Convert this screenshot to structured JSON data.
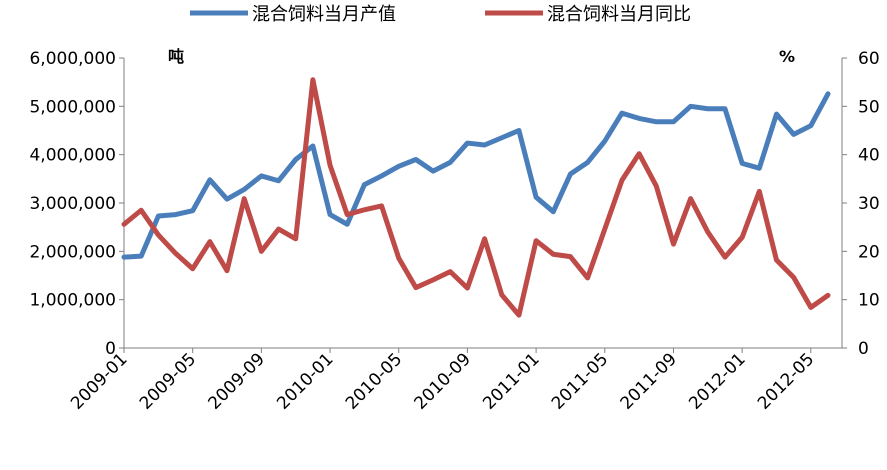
{
  "chart_data": {
    "type": "line",
    "title": "",
    "left_axis": {
      "unit": "吨",
      "ylim": [
        0,
        6000000
      ],
      "ticks": [
        "0",
        "1,000,000",
        "2,000,000",
        "3,000,000",
        "4,000,000",
        "5,000,000",
        "6,000,000"
      ]
    },
    "right_axis": {
      "unit": "%",
      "ylim": [
        0,
        60
      ],
      "ticks": [
        "0",
        "10",
        "20",
        "30",
        "40",
        "50",
        "60"
      ]
    },
    "x_tick_labels": [
      "2009-01",
      "2009-05",
      "2009-09",
      "2010-01",
      "2010-05",
      "2010-09",
      "2011-01",
      "2011-05",
      "2011-09",
      "2012-01",
      "2012-05"
    ],
    "legend_position": "top",
    "grid": false,
    "x": [
      "2009-01",
      "2009-02",
      "2009-03",
      "2009-04",
      "2009-05",
      "2009-06",
      "2009-07",
      "2009-08",
      "2009-09",
      "2009-10",
      "2009-11",
      "2009-12",
      "2010-01",
      "2010-02",
      "2010-03",
      "2010-04",
      "2010-05",
      "2010-06",
      "2010-07",
      "2010-08",
      "2010-09",
      "2010-10",
      "2010-11",
      "2010-12",
      "2011-01",
      "2011-02",
      "2011-03",
      "2011-04",
      "2011-05",
      "2011-06",
      "2011-07",
      "2011-08",
      "2011-09",
      "2011-10",
      "2011-11",
      "2011-12",
      "2012-01",
      "2012-02",
      "2012-03",
      "2012-04",
      "2012-05",
      "2012-06"
    ],
    "series": [
      {
        "name": "混合饲料当月产值",
        "axis": "left",
        "color": "#4a7ebb",
        "values": [
          1880000,
          1900000,
          2730000,
          2760000,
          2840000,
          3480000,
          3080000,
          3280000,
          3560000,
          3460000,
          3900000,
          4180000,
          2760000,
          2560000,
          3380000,
          3560000,
          3760000,
          3900000,
          3660000,
          3840000,
          4240000,
          4200000,
          4350000,
          4500000,
          3120000,
          2820000,
          3600000,
          3840000,
          4280000,
          4860000,
          4750000,
          4680000,
          4680000,
          5000000,
          4950000,
          4950000,
          3820000,
          3720000,
          4840000,
          4420000,
          4600000,
          5260000
        ]
      },
      {
        "name": "混合饲料当月同比",
        "axis": "right",
        "color": "#be4b48",
        "values": [
          25.6,
          28.5,
          23.4,
          19.6,
          16.4,
          22.0,
          16.0,
          30.9,
          20.0,
          24.6,
          22.6,
          55.5,
          37.8,
          27.6,
          28.6,
          29.4,
          18.6,
          12.5,
          14.1,
          15.8,
          12.4,
          22.6,
          11.0,
          6.8,
          22.2,
          19.4,
          18.9,
          14.5,
          24.6,
          34.7,
          40.2,
          33.5,
          21.5,
          30.9,
          24.0,
          18.8,
          22.9,
          32.4,
          18.2,
          14.6,
          8.4,
          10.9
        ]
      }
    ]
  }
}
